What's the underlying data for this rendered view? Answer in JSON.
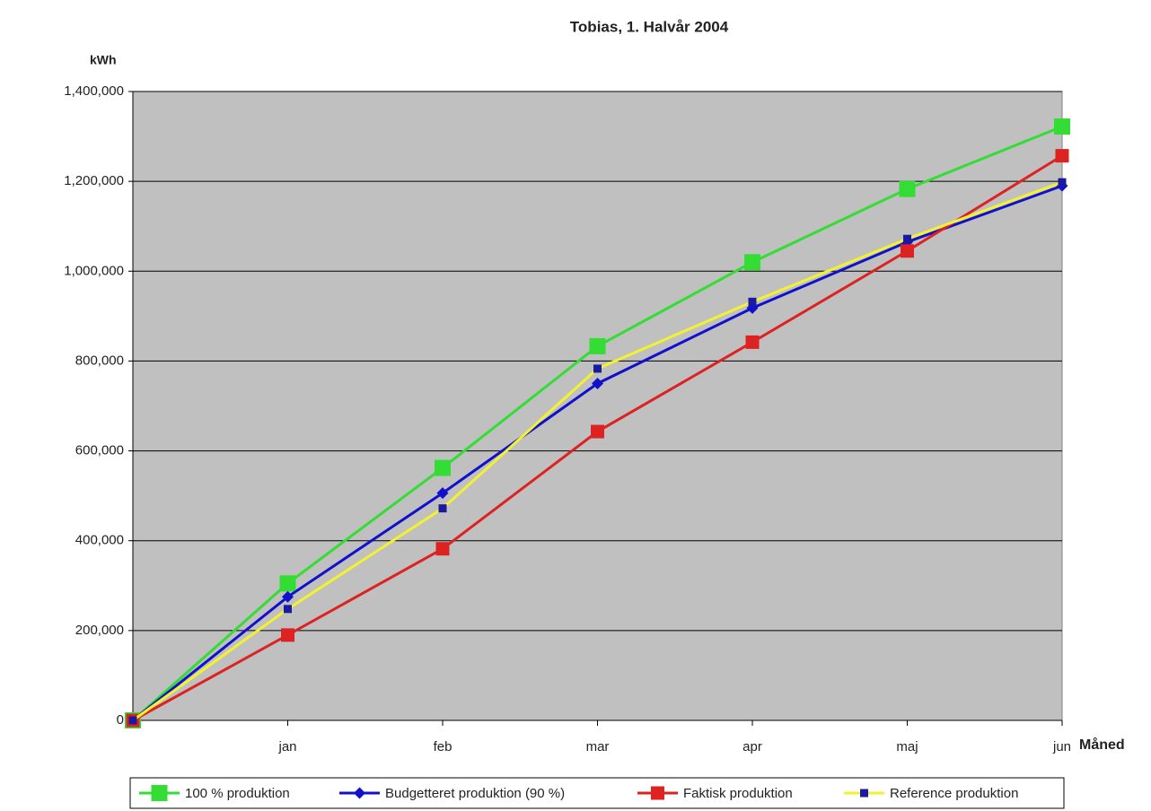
{
  "chart_data": {
    "type": "line",
    "title": "Tobias, 1. Halvår 2004",
    "y_label": "kWh",
    "x_label": "Måned",
    "categories": [
      null,
      "jan",
      "feb",
      "mar",
      "apr",
      "maj",
      "jun"
    ],
    "series": [
      {
        "name": "100 % produktion",
        "color": "#33dd33",
        "marker": "square",
        "marker_color": "#33dd33",
        "marker_size": 18,
        "values": [
          0,
          305000,
          562000,
          833000,
          1020000,
          1183000,
          1322000
        ]
      },
      {
        "name": "Budgetteret produktion (90 %)",
        "color": "#1111cc",
        "marker": "diamond",
        "marker_color": "#1111cc",
        "marker_size": 13,
        "values": [
          0,
          275000,
          506000,
          750000,
          918000,
          1065000,
          1190000
        ]
      },
      {
        "name": "Faktisk produktion",
        "color": "#dd2222",
        "marker": "square",
        "marker_color": "#dd2222",
        "marker_size": 15,
        "values": [
          0,
          190000,
          382000,
          643000,
          842000,
          1045000,
          1257000
        ]
      },
      {
        "name": "Reference produktion",
        "color": "#f2f230",
        "marker": "square",
        "marker_color": "#1a1aa0",
        "marker_size": 9,
        "values": [
          0,
          248000,
          472000,
          783000,
          932000,
          1072000,
          1198000
        ]
      }
    ],
    "ylim": [
      0,
      1400000
    ],
    "yticks": [
      0,
      {
        "value": 200000,
        "label": "200,000"
      },
      {
        "value": 400000,
        "label": "400,000"
      },
      {
        "value": 600000,
        "label": "600,000"
      },
      {
        "value": 800000,
        "label": "800,000"
      },
      {
        "value": 1000000,
        "label": "1,000,000"
      },
      {
        "value": 1200000,
        "label": "1,200,000"
      },
      {
        "value": 1400000,
        "label": "1,400,000"
      }
    ],
    "grid": true,
    "plot_background": "#c0c0c0",
    "legend": "bottom"
  }
}
